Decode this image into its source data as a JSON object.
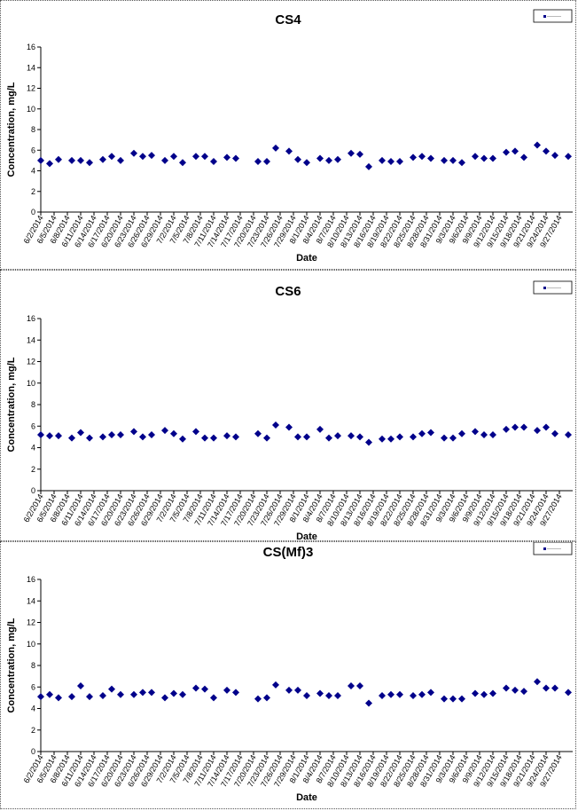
{
  "chart_data": [
    {
      "type": "scatter",
      "title": "CS4",
      "xlabel": "Date",
      "ylabel": "Concentration, mg/L",
      "ylim": [
        0,
        16
      ],
      "yticks": [
        0,
        2,
        4,
        6,
        8,
        10,
        12,
        14,
        16
      ],
      "xlim": [
        "2014-06-02",
        "2014-09-30"
      ],
      "xtick_labels": [
        "6/2/2014",
        "6/5/2014",
        "6/8/2014",
        "6/11/2014",
        "6/14/2014",
        "6/17/2014",
        "6/20/2014",
        "6/23/2014",
        "6/26/2014",
        "6/29/2014",
        "7/2/2014",
        "7/5/2014",
        "7/8/2014",
        "7/11/2014",
        "7/14/2014",
        "7/17/2014",
        "7/20/2014",
        "7/23/2014",
        "7/26/2014",
        "7/29/2014",
        "8/1/2014",
        "8/4/2014",
        "8/7/2014",
        "8/10/2014",
        "8/13/2014",
        "8/16/2014",
        "8/19/2014",
        "8/22/2014",
        "8/25/2014",
        "8/28/2014",
        "8/31/2014",
        "9/3/2014",
        "9/6/2014",
        "9/9/2014",
        "9/12/2014",
        "9/15/2014",
        "9/18/2014",
        "9/21/2014",
        "9/24/2014",
        "9/27/2014"
      ],
      "grid": false,
      "legend": "top-right",
      "marker_color": "#00008B",
      "points": [
        [
          "2014-06-02",
          5.0
        ],
        [
          "2014-06-04",
          4.7
        ],
        [
          "2014-06-06",
          5.1
        ],
        [
          "2014-06-09",
          5.0
        ],
        [
          "2014-06-11",
          5.0
        ],
        [
          "2014-06-13",
          4.8
        ],
        [
          "2014-06-16",
          5.1
        ],
        [
          "2014-06-18",
          5.4
        ],
        [
          "2014-06-20",
          5.0
        ],
        [
          "2014-06-23",
          5.7
        ],
        [
          "2014-06-25",
          5.4
        ],
        [
          "2014-06-27",
          5.5
        ],
        [
          "2014-06-30",
          5.0
        ],
        [
          "2014-07-02",
          5.4
        ],
        [
          "2014-07-04",
          4.8
        ],
        [
          "2014-07-07",
          5.4
        ],
        [
          "2014-07-09",
          5.4
        ],
        [
          "2014-07-11",
          4.9
        ],
        [
          "2014-07-14",
          5.3
        ],
        [
          "2014-07-16",
          5.2
        ],
        [
          "2014-07-21",
          4.9
        ],
        [
          "2014-07-23",
          4.9
        ],
        [
          "2014-07-25",
          6.2
        ],
        [
          "2014-07-28",
          5.9
        ],
        [
          "2014-07-30",
          5.1
        ],
        [
          "2014-08-01",
          4.8
        ],
        [
          "2014-08-04",
          5.2
        ],
        [
          "2014-08-06",
          5.0
        ],
        [
          "2014-08-08",
          5.1
        ],
        [
          "2014-08-11",
          5.7
        ],
        [
          "2014-08-13",
          5.6
        ],
        [
          "2014-08-15",
          4.4
        ],
        [
          "2014-08-18",
          5.0
        ],
        [
          "2014-08-20",
          4.9
        ],
        [
          "2014-08-22",
          4.9
        ],
        [
          "2014-08-25",
          5.3
        ],
        [
          "2014-08-27",
          5.4
        ],
        [
          "2014-08-29",
          5.2
        ],
        [
          "2014-09-01",
          5.0
        ],
        [
          "2014-09-03",
          5.0
        ],
        [
          "2014-09-05",
          4.8
        ],
        [
          "2014-09-08",
          5.4
        ],
        [
          "2014-09-10",
          5.2
        ],
        [
          "2014-09-12",
          5.2
        ],
        [
          "2014-09-15",
          5.8
        ],
        [
          "2014-09-17",
          5.9
        ],
        [
          "2014-09-19",
          5.3
        ],
        [
          "2014-09-22",
          6.5
        ],
        [
          "2014-09-24",
          5.9
        ],
        [
          "2014-09-26",
          5.5
        ],
        [
          "2014-09-29",
          5.4
        ]
      ]
    },
    {
      "type": "scatter",
      "title": "CS6",
      "xlabel": "Date",
      "ylabel": "Concentration, mg/L",
      "ylim": [
        0,
        16
      ],
      "yticks": [
        0,
        2,
        4,
        6,
        8,
        10,
        12,
        14,
        16
      ],
      "xlim": [
        "2014-06-02",
        "2014-09-30"
      ],
      "xtick_labels": [
        "6/2/2014",
        "6/5/2014",
        "6/8/2014",
        "6/11/2014",
        "6/14/2014",
        "6/17/2014",
        "6/20/2014",
        "6/23/2014",
        "6/26/2014",
        "6/29/2014",
        "7/2/2014",
        "7/5/2014",
        "7/8/2014",
        "7/11/2014",
        "7/14/2014",
        "7/17/2014",
        "7/20/2014",
        "7/23/2014",
        "7/26/2014",
        "7/29/2014",
        "8/1/2014",
        "8/4/2014",
        "8/7/2014",
        "8/10/2014",
        "8/13/2014",
        "8/16/2014",
        "8/19/2014",
        "8/22/2014",
        "8/25/2014",
        "8/28/2014",
        "8/31/2014",
        "9/3/2014",
        "9/6/2014",
        "9/9/2014",
        "9/12/2014",
        "9/15/2014",
        "9/18/2014",
        "9/21/2014",
        "9/24/2014",
        "9/27/2014"
      ],
      "grid": false,
      "legend": "top-right",
      "marker_color": "#00008B",
      "points": [
        [
          "2014-06-02",
          5.2
        ],
        [
          "2014-06-04",
          5.1
        ],
        [
          "2014-06-06",
          5.1
        ],
        [
          "2014-06-09",
          4.9
        ],
        [
          "2014-06-11",
          5.4
        ],
        [
          "2014-06-13",
          4.9
        ],
        [
          "2014-06-16",
          5.0
        ],
        [
          "2014-06-18",
          5.2
        ],
        [
          "2014-06-20",
          5.2
        ],
        [
          "2014-06-23",
          5.5
        ],
        [
          "2014-06-25",
          5.0
        ],
        [
          "2014-06-27",
          5.2
        ],
        [
          "2014-06-30",
          5.6
        ],
        [
          "2014-07-02",
          5.3
        ],
        [
          "2014-07-04",
          4.8
        ],
        [
          "2014-07-07",
          5.5
        ],
        [
          "2014-07-09",
          4.9
        ],
        [
          "2014-07-11",
          4.9
        ],
        [
          "2014-07-14",
          5.1
        ],
        [
          "2014-07-16",
          5.0
        ],
        [
          "2014-07-21",
          5.3
        ],
        [
          "2014-07-23",
          4.9
        ],
        [
          "2014-07-25",
          6.1
        ],
        [
          "2014-07-28",
          5.9
        ],
        [
          "2014-07-30",
          5.0
        ],
        [
          "2014-08-01",
          5.0
        ],
        [
          "2014-08-04",
          5.7
        ],
        [
          "2014-08-06",
          4.9
        ],
        [
          "2014-08-08",
          5.1
        ],
        [
          "2014-08-11",
          5.1
        ],
        [
          "2014-08-13",
          5.0
        ],
        [
          "2014-08-15",
          4.5
        ],
        [
          "2014-08-18",
          4.8
        ],
        [
          "2014-08-20",
          4.8
        ],
        [
          "2014-08-22",
          5.0
        ],
        [
          "2014-08-25",
          5.0
        ],
        [
          "2014-08-27",
          5.3
        ],
        [
          "2014-08-29",
          5.4
        ],
        [
          "2014-09-01",
          4.9
        ],
        [
          "2014-09-03",
          4.9
        ],
        [
          "2014-09-05",
          5.3
        ],
        [
          "2014-09-08",
          5.5
        ],
        [
          "2014-09-10",
          5.2
        ],
        [
          "2014-09-12",
          5.2
        ],
        [
          "2014-09-15",
          5.7
        ],
        [
          "2014-09-17",
          5.9
        ],
        [
          "2014-09-19",
          5.9
        ],
        [
          "2014-09-22",
          5.6
        ],
        [
          "2014-09-24",
          5.9
        ],
        [
          "2014-09-26",
          5.3
        ],
        [
          "2014-09-29",
          5.2
        ]
      ]
    },
    {
      "type": "scatter",
      "title": "CS(Mf)3",
      "xlabel": "Date",
      "ylabel": "Concentration, mg/L",
      "ylim": [
        0,
        16
      ],
      "yticks": [
        0,
        2,
        4,
        6,
        8,
        10,
        12,
        14,
        16
      ],
      "xlim": [
        "2014-06-02",
        "2014-09-30"
      ],
      "xtick_labels": [
        "6/2/2014",
        "6/5/2014",
        "6/8/2014",
        "6/11/2014",
        "6/14/2014",
        "6/17/2014",
        "6/20/2014",
        "6/23/2014",
        "6/26/2014",
        "6/29/2014",
        "7/2/2014",
        "7/5/2014",
        "7/8/2014",
        "7/11/2014",
        "7/14/2014",
        "7/17/2014",
        "7/20/2014",
        "7/23/2014",
        "7/26/2014",
        "7/29/2014",
        "8/1/2014",
        "8/4/2014",
        "8/7/2014",
        "8/10/2014",
        "8/13/2014",
        "8/16/2014",
        "8/19/2014",
        "8/22/2014",
        "8/25/2014",
        "8/28/2014",
        "8/31/2014",
        "9/3/2014",
        "9/6/2014",
        "9/9/2014",
        "9/12/2014",
        "9/15/2014",
        "9/18/2014",
        "9/21/2014",
        "9/24/2014",
        "9/27/2014"
      ],
      "grid": false,
      "legend": "top-right",
      "marker_color": "#00008B",
      "points": [
        [
          "2014-06-02",
          5.1
        ],
        [
          "2014-06-04",
          5.3
        ],
        [
          "2014-06-06",
          5.0
        ],
        [
          "2014-06-09",
          5.1
        ],
        [
          "2014-06-11",
          6.1
        ],
        [
          "2014-06-13",
          5.1
        ],
        [
          "2014-06-16",
          5.2
        ],
        [
          "2014-06-18",
          5.8
        ],
        [
          "2014-06-20",
          5.3
        ],
        [
          "2014-06-23",
          5.3
        ],
        [
          "2014-06-25",
          5.5
        ],
        [
          "2014-06-27",
          5.5
        ],
        [
          "2014-06-30",
          5.0
        ],
        [
          "2014-07-02",
          5.4
        ],
        [
          "2014-07-04",
          5.3
        ],
        [
          "2014-07-07",
          5.9
        ],
        [
          "2014-07-09",
          5.8
        ],
        [
          "2014-07-11",
          5.0
        ],
        [
          "2014-07-14",
          5.7
        ],
        [
          "2014-07-16",
          5.5
        ],
        [
          "2014-07-21",
          4.9
        ],
        [
          "2014-07-23",
          5.0
        ],
        [
          "2014-07-25",
          6.2
        ],
        [
          "2014-07-28",
          5.7
        ],
        [
          "2014-07-30",
          5.7
        ],
        [
          "2014-08-01",
          5.2
        ],
        [
          "2014-08-04",
          5.4
        ],
        [
          "2014-08-06",
          5.2
        ],
        [
          "2014-08-08",
          5.2
        ],
        [
          "2014-08-11",
          6.1
        ],
        [
          "2014-08-13",
          6.1
        ],
        [
          "2014-08-15",
          4.5
        ],
        [
          "2014-08-18",
          5.2
        ],
        [
          "2014-08-20",
          5.3
        ],
        [
          "2014-08-22",
          5.3
        ],
        [
          "2014-08-25",
          5.2
        ],
        [
          "2014-08-27",
          5.3
        ],
        [
          "2014-08-29",
          5.5
        ],
        [
          "2014-09-01",
          4.9
        ],
        [
          "2014-09-03",
          4.9
        ],
        [
          "2014-09-05",
          4.9
        ],
        [
          "2014-09-08",
          5.4
        ],
        [
          "2014-09-10",
          5.3
        ],
        [
          "2014-09-12",
          5.4
        ],
        [
          "2014-09-15",
          5.9
        ],
        [
          "2014-09-17",
          5.7
        ],
        [
          "2014-09-19",
          5.6
        ],
        [
          "2014-09-22",
          6.5
        ],
        [
          "2014-09-24",
          5.9
        ],
        [
          "2014-09-26",
          5.9
        ],
        [
          "2014-09-29",
          5.5
        ]
      ]
    }
  ]
}
